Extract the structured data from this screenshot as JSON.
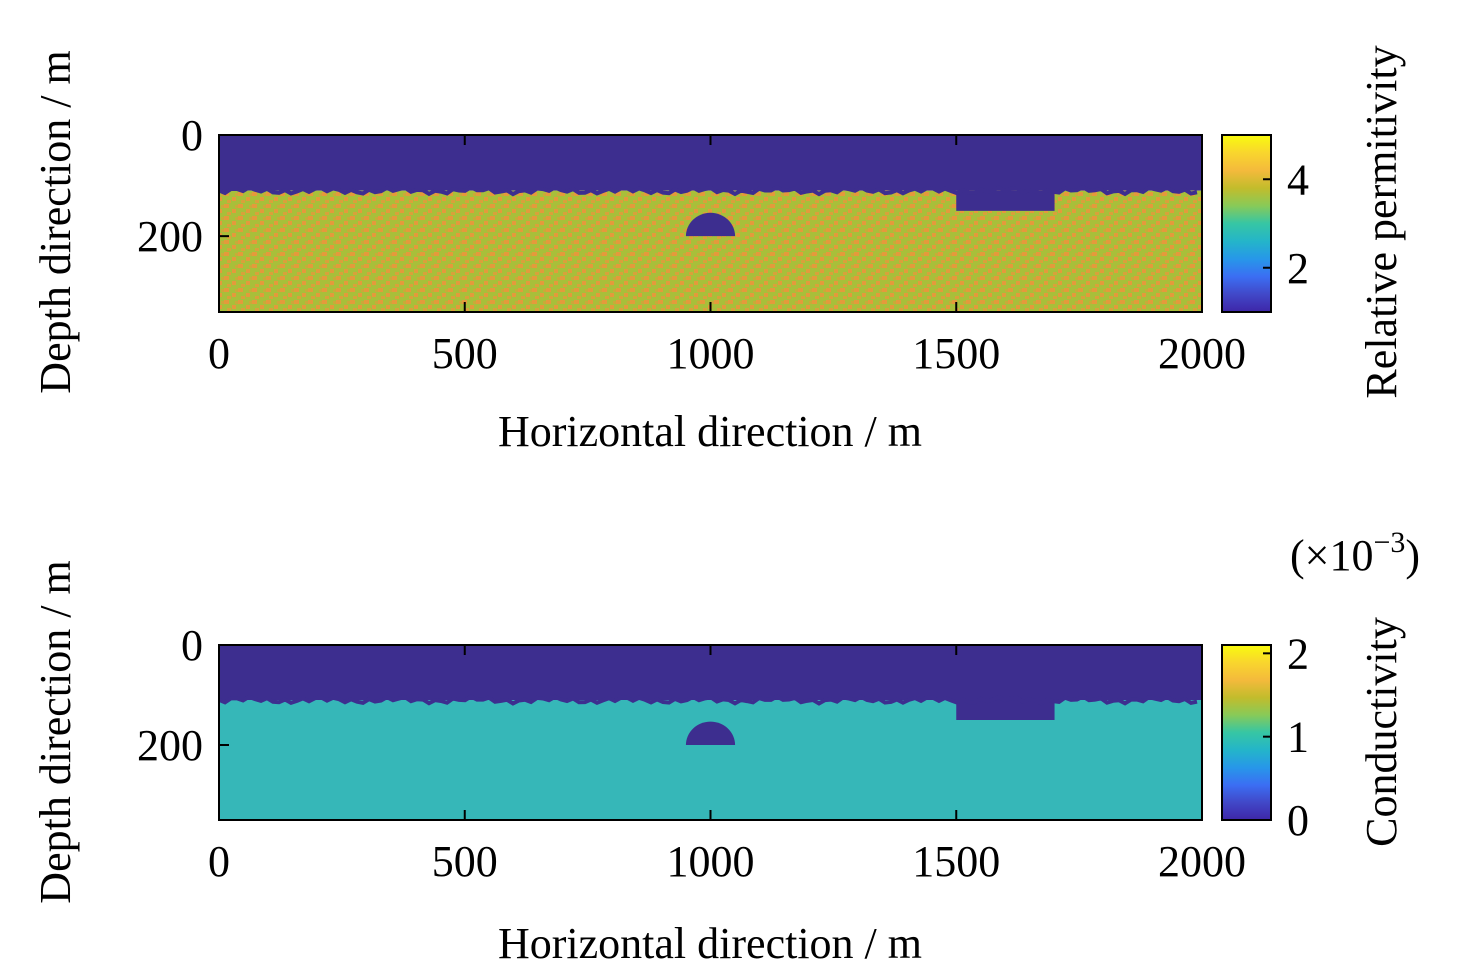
{
  "chart_data": [
    {
      "type": "heatmap",
      "xlabel": "Horizontal direction / m",
      "ylabel": "Depth direction / m",
      "xlim": [
        0,
        2000
      ],
      "ylim": [
        0,
        350
      ],
      "y_reversed": true,
      "xticks": [
        "0",
        "500",
        "1000",
        "1500",
        "2000"
      ],
      "xtick_values": [
        0,
        500,
        1000,
        1500,
        2000
      ],
      "yticks": [
        "0",
        "200"
      ],
      "ytick_values": [
        0,
        200
      ],
      "colorbar": {
        "label": "Relative permitivity",
        "range": [
          1,
          5
        ],
        "ticks": [
          "2",
          "4"
        ],
        "tick_values": [
          2,
          4
        ],
        "exponent_label": ""
      },
      "regions": [
        {
          "name": "air layer",
          "value": 1,
          "depth_range": [
            0,
            110
          ],
          "x_range": [
            0,
            2000
          ],
          "color": "#3d2e8f"
        },
        {
          "name": "subsurface medium",
          "value": 4.3,
          "depth_range": [
            110,
            350
          ],
          "x_range": [
            0,
            2000
          ],
          "color": "#a8bf3a",
          "noise_color": "#e49a3b",
          "heterogeneous": true
        },
        {
          "name": "rectangular void",
          "value": 1,
          "depth_range": [
            110,
            150
          ],
          "x_range": [
            1500,
            1700
          ],
          "color": "#3d2e8f"
        },
        {
          "name": "semicircular void",
          "value": 1,
          "center": [
            1000,
            200
          ],
          "radius": 50,
          "shape": "half-disk",
          "color": "#3d2e8f"
        }
      ],
      "colormap": [
        "#3e26a8",
        "#4148c8",
        "#3b6ef3",
        "#2797e9",
        "#24b5c9",
        "#36c6a4",
        "#88ca58",
        "#c2bc2c",
        "#f4ba3c",
        "#f9d62d",
        "#f9fb0e"
      ]
    },
    {
      "type": "heatmap",
      "xlabel": "Horizontal direction / m",
      "ylabel": "Depth direction / m",
      "xlim": [
        0,
        2000
      ],
      "ylim": [
        0,
        350
      ],
      "y_reversed": true,
      "xticks": [
        "0",
        "500",
        "1000",
        "1500",
        "2000"
      ],
      "xtick_values": [
        0,
        500,
        1000,
        1500,
        2000
      ],
      "yticks": [
        "0",
        "200"
      ],
      "ytick_values": [
        0,
        200
      ],
      "colorbar": {
        "label": "Conductivity",
        "range": [
          0,
          2.1
        ],
        "ticks": [
          "0",
          "1",
          "2"
        ],
        "tick_values": [
          0,
          1,
          2
        ],
        "exponent_label": "(×10",
        "exponent_power": "−3",
        "exponent_close": ")"
      },
      "regions": [
        {
          "name": "air layer",
          "value": 0,
          "depth_range": [
            0,
            110
          ],
          "x_range": [
            0,
            2000
          ],
          "color": "#3d2e8f"
        },
        {
          "name": "subsurface medium",
          "value": 1,
          "depth_range": [
            110,
            350
          ],
          "x_range": [
            0,
            2000
          ],
          "color": "#36b7b8"
        },
        {
          "name": "rectangular void",
          "value": 0,
          "depth_range": [
            110,
            150
          ],
          "x_range": [
            1500,
            1700
          ],
          "color": "#3d2e8f"
        },
        {
          "name": "semicircular void",
          "value": 0,
          "center": [
            1000,
            200
          ],
          "radius": 50,
          "shape": "half-disk",
          "color": "#3d2e8f"
        }
      ],
      "colormap": [
        "#3e26a8",
        "#4148c8",
        "#3b6ef3",
        "#2797e9",
        "#24b5c9",
        "#36c6a4",
        "#88ca58",
        "#c2bc2c",
        "#f4ba3c",
        "#f9d62d",
        "#f9fb0e"
      ]
    }
  ]
}
